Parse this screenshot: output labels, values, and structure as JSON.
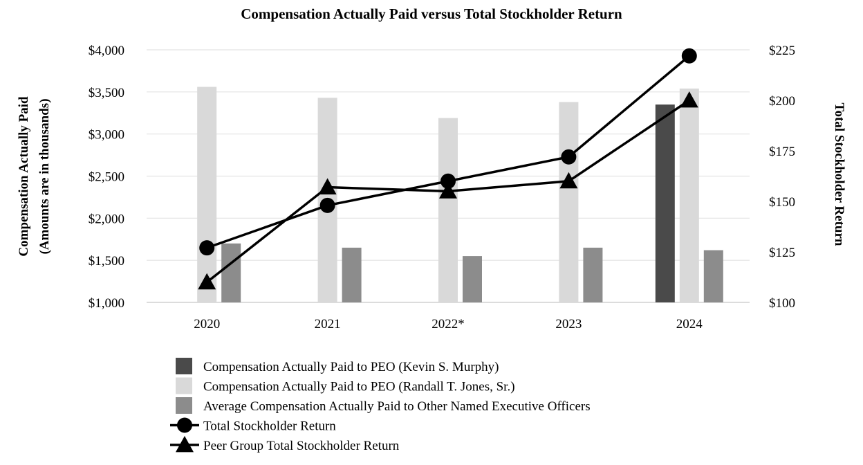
{
  "chart_data": {
    "type": "bar",
    "title": "Compensation Actually Paid versus Total Stockholder Return",
    "ylabel_left_line1": "Compensation Actually Paid",
    "ylabel_left_line2": "(Amounts are in thousands)",
    "ylabel_right": "Total Stockholder Return",
    "categories": [
      "2020",
      "2021",
      "2022*",
      "2023",
      "2024"
    ],
    "y_left": {
      "min": 1000,
      "max": 4000,
      "step": 500,
      "tick_labels": [
        "$1,000",
        "$1,500",
        "$2,000",
        "$2,500",
        "$3,000",
        "$3,500",
        "$4,000"
      ]
    },
    "y_right": {
      "min": 100,
      "max": 225,
      "step": 25,
      "tick_labels": [
        "$100",
        "$125",
        "$150",
        "$175",
        "$200",
        "$225"
      ]
    },
    "grid": true,
    "legend_position": "bottom",
    "bar_series": [
      {
        "name": "Compensation Actually Paid to PEO (Kevin S. Murphy)",
        "color": "#4a4a4a",
        "values": [
          null,
          null,
          null,
          null,
          3350
        ]
      },
      {
        "name": "Compensation Actually Paid to PEO (Randall T. Jones, Sr.)",
        "color": "#d9d9d9",
        "values": [
          3560,
          3430,
          3190,
          3380,
          3540
        ]
      },
      {
        "name": "Average Compensation Actually Paid to Other Named Executive Officers",
        "color": "#8c8c8c",
        "values": [
          1700,
          1650,
          1550,
          1650,
          1620
        ]
      }
    ],
    "line_series": [
      {
        "name": "Total Stockholder Return",
        "marker": "circle",
        "color": "#000000",
        "values": [
          127,
          148,
          160,
          172,
          222
        ]
      },
      {
        "name": "Peer Group Total Stockholder Return",
        "marker": "triangle",
        "color": "#000000",
        "values": [
          110,
          157,
          155,
          160,
          200
        ]
      }
    ]
  }
}
